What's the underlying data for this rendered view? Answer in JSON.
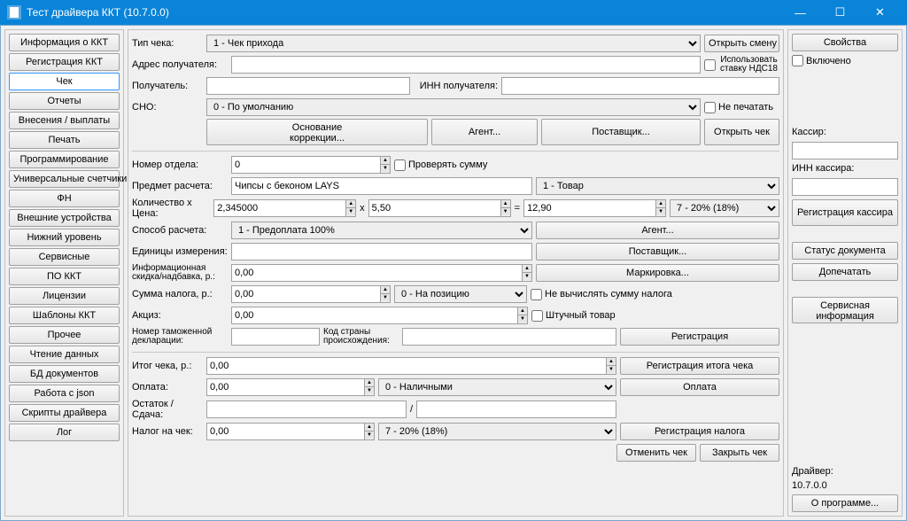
{
  "window": {
    "title": "Тест драйвера ККТ (10.7.0.0)"
  },
  "sidebar": {
    "items": [
      "Информация о ККТ",
      "Регистрация ККТ",
      "Чек",
      "Отчеты",
      "Внесения / выплаты",
      "Печать",
      "Программирование",
      "Универсальные счетчики",
      "ФН",
      "Внешние устройства",
      "Нижний уровень",
      "Сервисные",
      "ПО ККТ",
      "Лицензии",
      "Шаблоны ККТ",
      "Прочее",
      "Чтение данных",
      "БД документов",
      "Работа с json",
      "Скрипты драйвера",
      "Лог"
    ],
    "active_index": 2
  },
  "form": {
    "receipt_type_label": "Тип чека:",
    "receipt_type": "1 - Чек прихода",
    "open_shift": "Открыть смену",
    "recipient_addr_label": "Адрес получателя:",
    "recipient_addr": "",
    "use_rate_label": "Использовать ставку НДС18",
    "recipient_label": "Получатель:",
    "recipient": "",
    "recipient_inn_label": "ИНН получателя:",
    "recipient_inn": "",
    "sno_label": "СНО:",
    "sno": "0 - По умолчанию",
    "no_print_label": "Не печатать",
    "correction_basis": "Основание\nкоррекции...",
    "agent_btn": "Агент...",
    "supplier_btn": "Поставщик...",
    "open_receipt": "Открыть чек",
    "dept_label": "Номер отдела:",
    "dept": "0",
    "check_sum_label": "Проверять сумму",
    "subject_label": "Предмет расчета:",
    "subject": "Чипсы с беконом LAYS",
    "subject_type": "1 - Товар",
    "qty_price_label": "Количество х Цена:",
    "qty": "2,345000",
    "times": "x",
    "price": "5,50",
    "equals": "=",
    "total": "12,90",
    "tax_rate": "7 - 20% (18%)",
    "method_label": "Способ расчета:",
    "method": "1 - Предоплата 100%",
    "agent_btn2": "Агент...",
    "unit_label": "Единицы измерения:",
    "unit": "",
    "supplier_btn2": "Поставщик...",
    "info_discount_label": "Информационная скидка/надбавка, р.:",
    "info_discount": "0,00",
    "marking_btn": "Маркировка...",
    "tax_sum_label": "Сумма налога, р.:",
    "tax_sum": "0,00",
    "tax_pos": "0 - На позицию",
    "no_calc_tax_label": "Не вычислять сумму налога",
    "excise_label": "Акциз:",
    "excise": "0,00",
    "piece_goods_label": "Штучный товар",
    "customs_decl_label": "Номер таможенной декларации:",
    "customs_decl": "",
    "country_code_label": "Код страны происхождения:",
    "country_code": "",
    "registration_btn": "Регистрация",
    "total_label": "Итог чека, р.:",
    "total_receipt": "0,00",
    "reg_total_btn": "Регистрация итога чека",
    "payment_label": "Оплата:",
    "payment": "0,00",
    "payment_type": "0 - Наличными",
    "payment_btn": "Оплата",
    "change_label": "Остаток / Сдача:",
    "change1": "",
    "slash": "/",
    "change2": "",
    "tax_on_receipt_label": "Налог на чек:",
    "tax_on_receipt": "0,00",
    "tax_on_receipt_rate": "7 - 20% (18%)",
    "reg_tax_btn": "Регистрация налога",
    "cancel_btn": "Отменить чек",
    "close_btn": "Закрыть чек"
  },
  "right": {
    "properties": "Свойства",
    "enabled": "Включено",
    "cashier_label": "Кассир:",
    "cashier": "",
    "cashier_inn_label": "ИНН кассира:",
    "cashier_inn": "",
    "reg_cashier": "Регистрация кассира",
    "doc_status": "Статус документа",
    "print_more": "Допечатать",
    "service_info": "Сервисная информация",
    "driver_label": "Драйвер:",
    "driver_ver": "10.7.0.0",
    "about": "О программе..."
  }
}
